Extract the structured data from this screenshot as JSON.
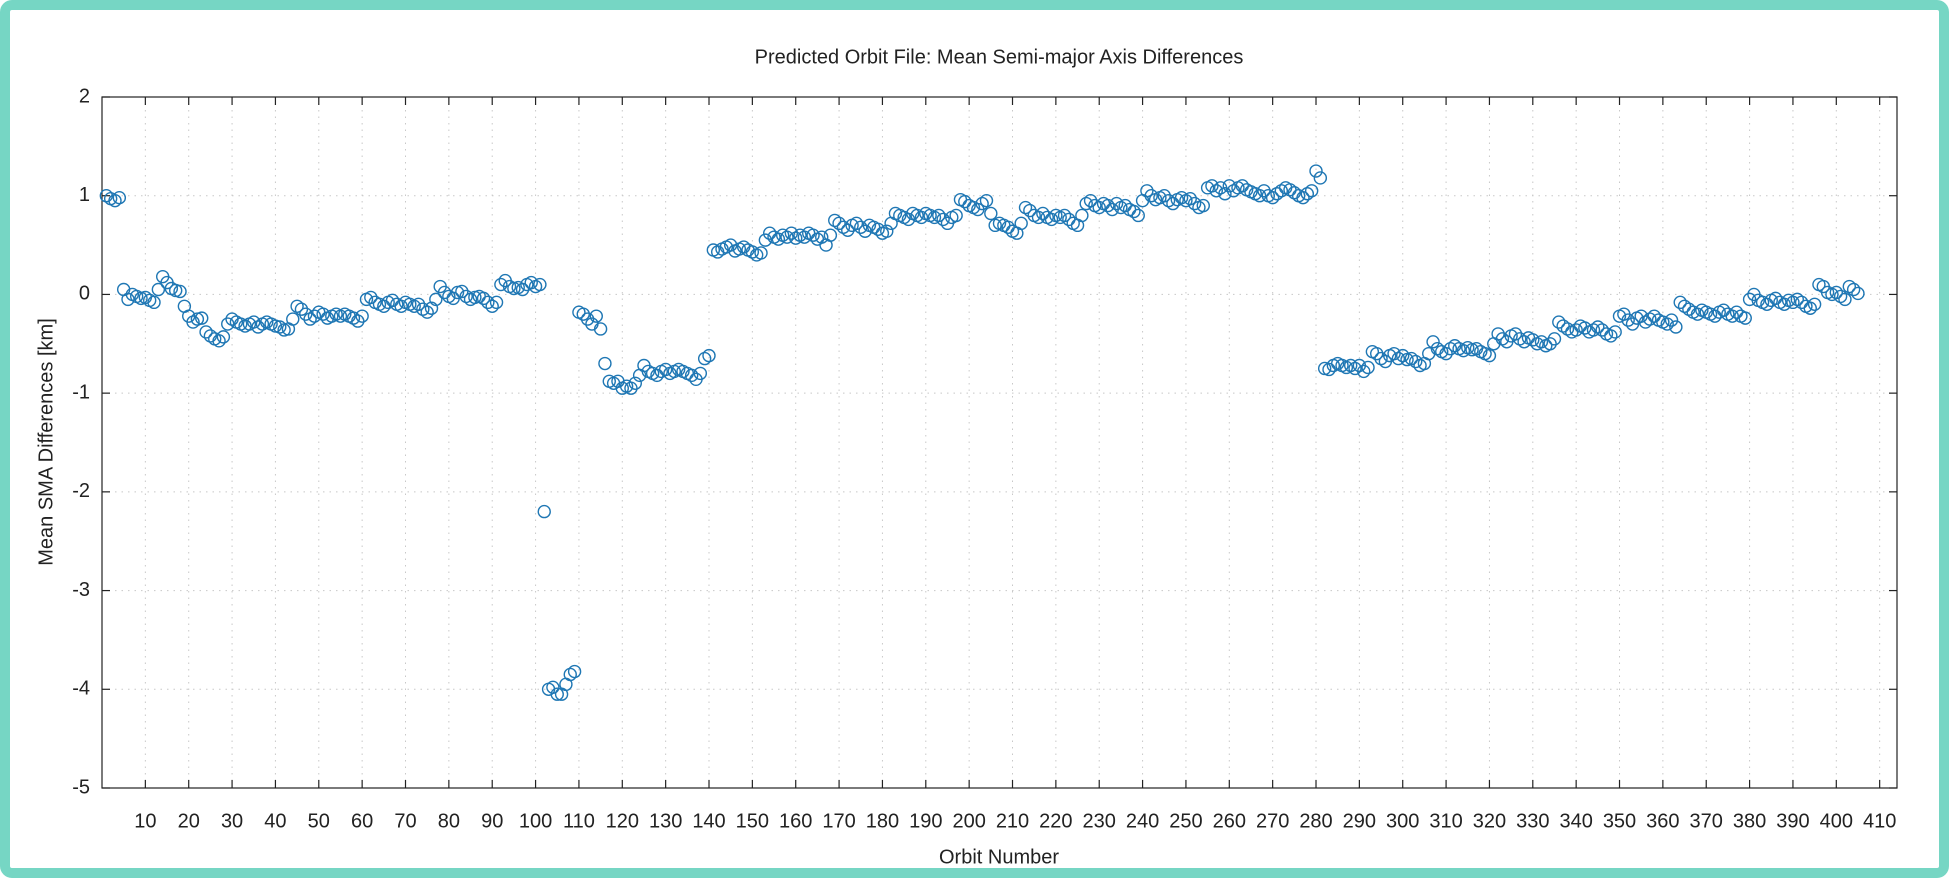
{
  "chart_data": {
    "type": "scatter",
    "title": "Predicted Orbit File: Mean Semi-major Axis Differences",
    "x_label": "Orbit Number",
    "y_label": "Mean SMA Differences [km]",
    "color": "#1f77b4",
    "grid": true,
    "xlim": [
      0,
      414
    ],
    "ylim": [
      -5,
      2
    ],
    "xticks": [
      10,
      20,
      30,
      40,
      50,
      60,
      70,
      80,
      90,
      100,
      110,
      120,
      130,
      140,
      150,
      160,
      170,
      180,
      190,
      200,
      210,
      220,
      230,
      240,
      250,
      260,
      270,
      280,
      290,
      300,
      310,
      320,
      330,
      340,
      350,
      360,
      370,
      380,
      390,
      400,
      410
    ],
    "yticks": [
      -5,
      -4,
      -3,
      -2,
      -1,
      0,
      1,
      2
    ],
    "x": [
      1,
      2,
      3,
      4,
      5,
      6,
      7,
      8,
      9,
      10,
      11,
      12,
      13,
      14,
      15,
      16,
      17,
      18,
      19,
      20,
      21,
      22,
      23,
      24,
      25,
      26,
      27,
      28,
      29,
      30,
      31,
      32,
      33,
      34,
      35,
      36,
      37,
      38,
      39,
      40,
      41,
      42,
      43,
      44,
      45,
      46,
      47,
      48,
      49,
      50,
      51,
      52,
      53,
      54,
      55,
      56,
      57,
      58,
      59,
      60,
      61,
      62,
      63,
      64,
      65,
      66,
      67,
      68,
      69,
      70,
      71,
      72,
      73,
      74,
      75,
      76,
      77,
      78,
      79,
      80,
      81,
      82,
      83,
      84,
      85,
      86,
      87,
      88,
      89,
      90,
      91,
      92,
      93,
      94,
      95,
      96,
      97,
      98,
      99,
      100,
      101,
      102,
      103,
      104,
      105,
      106,
      107,
      108,
      109,
      110,
      111,
      112,
      113,
      114,
      115,
      116,
      117,
      118,
      119,
      120,
      121,
      122,
      123,
      124,
      125,
      126,
      127,
      128,
      129,
      130,
      131,
      132,
      133,
      134,
      135,
      136,
      137,
      138,
      139,
      140,
      141,
      142,
      143,
      144,
      145,
      146,
      147,
      148,
      149,
      150,
      151,
      152,
      153,
      154,
      155,
      156,
      157,
      158,
      159,
      160,
      161,
      162,
      163,
      164,
      165,
      166,
      167,
      168,
      169,
      170,
      171,
      172,
      173,
      174,
      175,
      176,
      177,
      178,
      179,
      180,
      181,
      182,
      183,
      184,
      185,
      186,
      187,
      188,
      189,
      190,
      191,
      192,
      193,
      194,
      195,
      196,
      197,
      198,
      199,
      200,
      201,
      202,
      203,
      204,
      205,
      206,
      207,
      208,
      209,
      210,
      211,
      212,
      213,
      214,
      215,
      216,
      217,
      218,
      219,
      220,
      221,
      222,
      223,
      224,
      225,
      226,
      227,
      228,
      229,
      230,
      231,
      232,
      233,
      234,
      235,
      236,
      237,
      238,
      239,
      240,
      241,
      242,
      243,
      244,
      245,
      246,
      247,
      248,
      249,
      250,
      251,
      252,
      253,
      254,
      255,
      256,
      257,
      258,
      259,
      260,
      261,
      262,
      263,
      264,
      265,
      266,
      267,
      268,
      269,
      270,
      271,
      272,
      273,
      274,
      275,
      276,
      277,
      278,
      279,
      280,
      281,
      282,
      283,
      284,
      285,
      286,
      287,
      288,
      289,
      290,
      291,
      292,
      293,
      294,
      295,
      296,
      297,
      298,
      299,
      300,
      301,
      302,
      303,
      304,
      305,
      306,
      307,
      308,
      309,
      310,
      311,
      312,
      313,
      314,
      315,
      316,
      317,
      318,
      319,
      320,
      321,
      322,
      323,
      324,
      325,
      326,
      327,
      328,
      329,
      330,
      331,
      332,
      333,
      334,
      335,
      336,
      337,
      338,
      339,
      340,
      341,
      342,
      343,
      344,
      345,
      346,
      347,
      348,
      349,
      350,
      351,
      352,
      353,
      354,
      355,
      356,
      357,
      358,
      359,
      360,
      361,
      362,
      363,
      364,
      365,
      366,
      367,
      368,
      369,
      370,
      371,
      372,
      373,
      374,
      375,
      376,
      377,
      378,
      379,
      380,
      381,
      382,
      383,
      384,
      385,
      386,
      387,
      388,
      389,
      390,
      391,
      392,
      393,
      394,
      395,
      396,
      397,
      398,
      399,
      400,
      401,
      402,
      403,
      404,
      405
    ],
    "values": [
      1.0,
      0.97,
      0.95,
      0.98,
      0.05,
      -0.05,
      0.0,
      -0.02,
      -0.04,
      -0.03,
      -0.06,
      -0.08,
      0.05,
      0.18,
      0.12,
      0.06,
      0.04,
      0.03,
      -0.12,
      -0.22,
      -0.28,
      -0.25,
      -0.24,
      -0.38,
      -0.42,
      -0.45,
      -0.47,
      -0.43,
      -0.3,
      -0.25,
      -0.28,
      -0.3,
      -0.32,
      -0.3,
      -0.28,
      -0.33,
      -0.3,
      -0.28,
      -0.3,
      -0.32,
      -0.33,
      -0.36,
      -0.35,
      -0.25,
      -0.12,
      -0.15,
      -0.2,
      -0.25,
      -0.22,
      -0.18,
      -0.2,
      -0.24,
      -0.22,
      -0.2,
      -0.22,
      -0.2,
      -0.22,
      -0.24,
      -0.27,
      -0.22,
      -0.05,
      -0.03,
      -0.08,
      -0.1,
      -0.12,
      -0.08,
      -0.06,
      -0.1,
      -0.12,
      -0.08,
      -0.1,
      -0.12,
      -0.1,
      -0.15,
      -0.18,
      -0.14,
      -0.05,
      0.08,
      0.02,
      -0.02,
      -0.04,
      0.02,
      0.03,
      -0.02,
      -0.05,
      -0.03,
      -0.02,
      -0.04,
      -0.08,
      -0.12,
      -0.08,
      0.1,
      0.14,
      0.08,
      0.06,
      0.07,
      0.05,
      0.1,
      0.12,
      0.08,
      0.1,
      -2.2,
      -4.0,
      -3.98,
      -4.05,
      -4.05,
      -3.95,
      -3.85,
      -3.82,
      -0.18,
      -0.2,
      -0.25,
      -0.3,
      -0.22,
      -0.35,
      -0.7,
      -0.88,
      -0.9,
      -0.88,
      -0.95,
      -0.93,
      -0.95,
      -0.9,
      -0.82,
      -0.72,
      -0.78,
      -0.8,
      -0.82,
      -0.78,
      -0.76,
      -0.8,
      -0.78,
      -0.76,
      -0.78,
      -0.8,
      -0.82,
      -0.86,
      -0.8,
      -0.65,
      -0.62,
      0.45,
      0.43,
      0.46,
      0.48,
      0.5,
      0.44,
      0.46,
      0.48,
      0.45,
      0.43,
      0.4,
      0.42,
      0.55,
      0.62,
      0.58,
      0.56,
      0.6,
      0.58,
      0.62,
      0.57,
      0.6,
      0.58,
      0.62,
      0.6,
      0.56,
      0.58,
      0.5,
      0.6,
      0.75,
      0.72,
      0.68,
      0.65,
      0.7,
      0.72,
      0.68,
      0.64,
      0.7,
      0.68,
      0.66,
      0.62,
      0.64,
      0.72,
      0.82,
      0.8,
      0.78,
      0.76,
      0.82,
      0.8,
      0.78,
      0.82,
      0.8,
      0.78,
      0.8,
      0.76,
      0.72,
      0.78,
      0.8,
      0.96,
      0.94,
      0.9,
      0.88,
      0.86,
      0.92,
      0.95,
      0.82,
      0.7,
      0.72,
      0.7,
      0.68,
      0.64,
      0.62,
      0.72,
      0.88,
      0.85,
      0.8,
      0.78,
      0.82,
      0.78,
      0.76,
      0.8,
      0.78,
      0.8,
      0.76,
      0.72,
      0.7,
      0.8,
      0.92,
      0.95,
      0.9,
      0.88,
      0.92,
      0.9,
      0.86,
      0.92,
      0.88,
      0.9,
      0.86,
      0.84,
      0.8,
      0.95,
      1.05,
      1.0,
      0.96,
      0.98,
      1.0,
      0.95,
      0.92,
      0.96,
      0.98,
      0.95,
      0.97,
      0.92,
      0.88,
      0.9,
      1.08,
      1.1,
      1.05,
      1.08,
      1.02,
      1.1,
      1.05,
      1.08,
      1.1,
      1.06,
      1.04,
      1.02,
      1.0,
      1.05,
      1.0,
      0.98,
      1.02,
      1.05,
      1.08,
      1.06,
      1.03,
      1.0,
      0.98,
      1.02,
      1.05,
      1.25,
      1.18,
      -0.75,
      -0.76,
      -0.72,
      -0.7,
      -0.72,
      -0.74,
      -0.72,
      -0.75,
      -0.72,
      -0.78,
      -0.74,
      -0.58,
      -0.6,
      -0.65,
      -0.68,
      -0.62,
      -0.6,
      -0.65,
      -0.62,
      -0.66,
      -0.65,
      -0.68,
      -0.72,
      -0.7,
      -0.6,
      -0.48,
      -0.55,
      -0.58,
      -0.6,
      -0.55,
      -0.52,
      -0.55,
      -0.57,
      -0.54,
      -0.56,
      -0.55,
      -0.58,
      -0.6,
      -0.62,
      -0.5,
      -0.4,
      -0.45,
      -0.48,
      -0.42,
      -0.4,
      -0.45,
      -0.48,
      -0.44,
      -0.46,
      -0.5,
      -0.48,
      -0.52,
      -0.5,
      -0.45,
      -0.28,
      -0.32,
      -0.35,
      -0.38,
      -0.36,
      -0.32,
      -0.34,
      -0.38,
      -0.36,
      -0.33,
      -0.36,
      -0.4,
      -0.42,
      -0.38,
      -0.22,
      -0.2,
      -0.26,
      -0.3,
      -0.24,
      -0.22,
      -0.28,
      -0.25,
      -0.22,
      -0.26,
      -0.28,
      -0.3,
      -0.26,
      -0.33,
      -0.08,
      -0.12,
      -0.15,
      -0.18,
      -0.2,
      -0.16,
      -0.18,
      -0.2,
      -0.22,
      -0.18,
      -0.16,
      -0.2,
      -0.22,
      -0.18,
      -0.22,
      -0.24,
      -0.05,
      0.0,
      -0.06,
      -0.08,
      -0.1,
      -0.06,
      -0.04,
      -0.08,
      -0.1,
      -0.06,
      -0.08,
      -0.05,
      -0.08,
      -0.12,
      -0.14,
      -0.1,
      0.1,
      0.08,
      0.02,
      0.0,
      0.02,
      -0.02,
      -0.05,
      0.08,
      0.05,
      0.01
    ]
  }
}
